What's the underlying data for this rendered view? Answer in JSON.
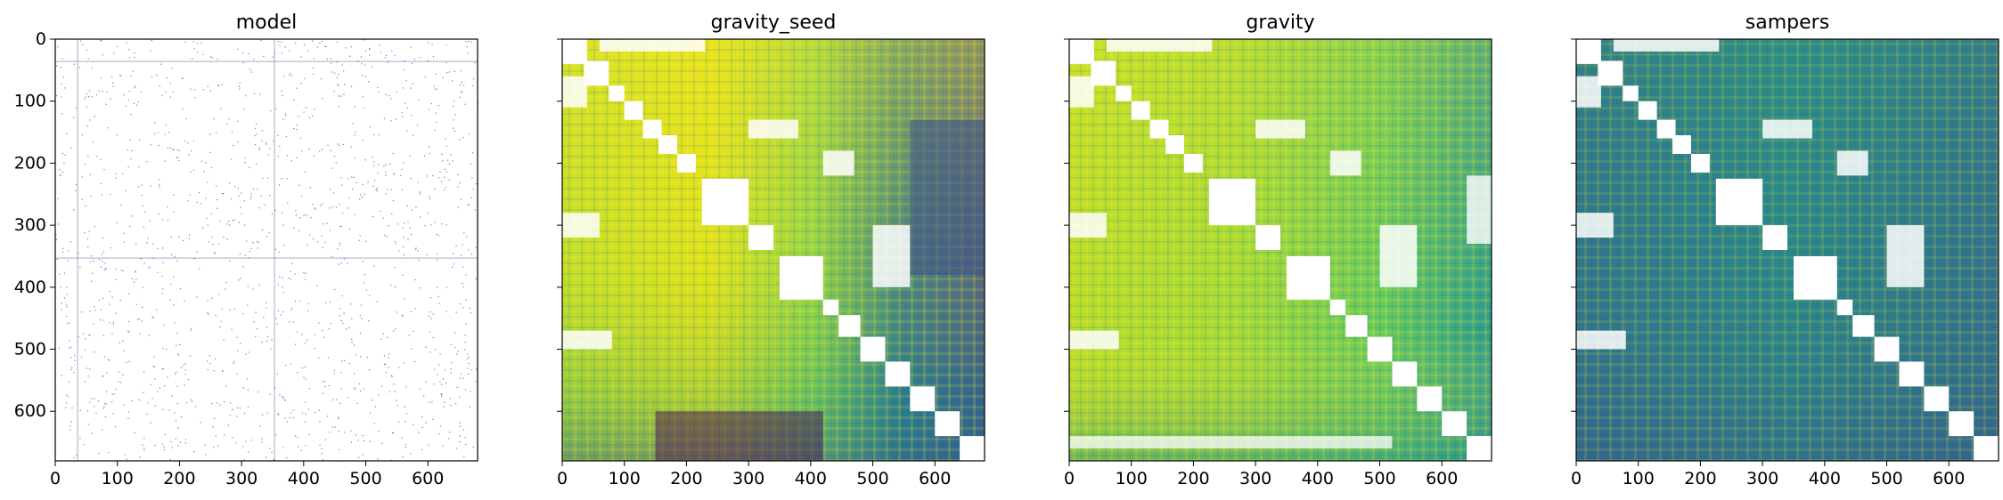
{
  "chart_data": [
    {
      "type": "heatmap",
      "title": "model",
      "xlim": [
        0,
        680
      ],
      "ylim": [
        680,
        0
      ],
      "xticks": [
        0,
        100,
        200,
        300,
        400,
        500,
        600
      ],
      "yticks": [
        0,
        100,
        200,
        300,
        400,
        500,
        600
      ],
      "show_y_tick_labels": true,
      "colormap": "purple-on-white sparse",
      "colors": [
        "#ffffff",
        "#3b0f70"
      ]
    },
    {
      "type": "heatmap",
      "title": "gravity_seed",
      "xlim": [
        0,
        680
      ],
      "ylim": [
        680,
        0
      ],
      "xticks": [
        0,
        100,
        200,
        300,
        400,
        500,
        600
      ],
      "yticks": [
        0,
        100,
        200,
        300,
        400,
        500,
        600
      ],
      "show_y_tick_labels": false,
      "colormap": "viridis",
      "colors": [
        "#440154",
        "#3b528b",
        "#21918c",
        "#5ec962",
        "#fde725"
      ]
    },
    {
      "type": "heatmap",
      "title": "gravity",
      "xlim": [
        0,
        680
      ],
      "ylim": [
        680,
        0
      ],
      "xticks": [
        0,
        100,
        200,
        300,
        400,
        500,
        600
      ],
      "yticks": [
        0,
        100,
        200,
        300,
        400,
        500,
        600
      ],
      "show_y_tick_labels": false,
      "colormap": "viridis",
      "colors": [
        "#440154",
        "#3b528b",
        "#21918c",
        "#5ec962",
        "#fde725"
      ]
    },
    {
      "type": "heatmap",
      "title": "sampers",
      "xlim": [
        0,
        680
      ],
      "ylim": [
        680,
        0
      ],
      "xticks": [
        0,
        100,
        200,
        300,
        400,
        500,
        600
      ],
      "yticks": [
        0,
        100,
        200,
        300,
        400,
        500,
        600
      ],
      "show_y_tick_labels": false,
      "colormap": "viridis",
      "colors": [
        "#440154",
        "#3b528b",
        "#21918c",
        "#5ec962",
        "#fde725"
      ]
    }
  ]
}
